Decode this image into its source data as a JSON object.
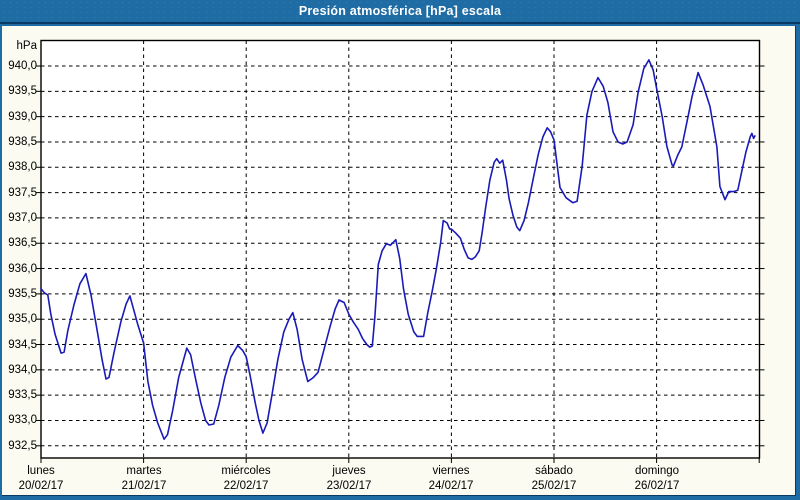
{
  "window": {
    "title": "Presión atmosférica [hPa] escala"
  },
  "colors": {
    "header_bg": "#1f6ba3",
    "header_text": "#ffffff",
    "frame_inner_line": "#0a3a63",
    "background": "#fbfbf1",
    "plot_bg": "#ffffff",
    "plot_border": "#000000",
    "gridline": "#000000",
    "series_line": "#1a1ab8",
    "label_text": "#000000"
  },
  "chart_data": {
    "type": "line",
    "title": "Presión atmosférica [hPa] escala",
    "unit_label": "hPa",
    "ylabel": "hPa",
    "ylim": [
      932.5,
      940.0
    ],
    "ytick_step": 0.5,
    "ytick_labels": [
      "940,0",
      "939,5",
      "939,0",
      "938,5",
      "938,0",
      "937,5",
      "937,0",
      "936,5",
      "936,0",
      "935,5",
      "935,0",
      "934,5",
      "934,0",
      "933,5",
      "933,0",
      "932,5"
    ],
    "x_total_hours": 168,
    "x_days": [
      {
        "name": "lunes",
        "date": "20/02/17"
      },
      {
        "name": "martes",
        "date": "21/02/17"
      },
      {
        "name": "miércoles",
        "date": "22/02/17"
      },
      {
        "name": "jueves",
        "date": "23/02/17"
      },
      {
        "name": "viernes",
        "date": "24/02/17"
      },
      {
        "name": "sábado",
        "date": "25/02/17"
      },
      {
        "name": "domingo",
        "date": "26/02/17"
      }
    ],
    "grid": true,
    "legend": null,
    "series": [
      {
        "name": "presión atmosférica",
        "points": [
          [
            0,
            935.6
          ],
          [
            0.8,
            935.52
          ],
          [
            1.6,
            935.48
          ],
          [
            2.3,
            935.1
          ],
          [
            3.3,
            934.7
          ],
          [
            4.7,
            934.33
          ],
          [
            5.4,
            934.35
          ],
          [
            6.3,
            934.78
          ],
          [
            7.7,
            935.28
          ],
          [
            9.1,
            935.7
          ],
          [
            10.5,
            935.9
          ],
          [
            11.7,
            935.48
          ],
          [
            13.3,
            934.69
          ],
          [
            14.3,
            934.2
          ],
          [
            15.2,
            933.82
          ],
          [
            15.9,
            933.85
          ],
          [
            17.1,
            934.35
          ],
          [
            18.7,
            934.95
          ],
          [
            19.9,
            935.3
          ],
          [
            20.8,
            935.46
          ],
          [
            21.8,
            935.15
          ],
          [
            22.7,
            934.88
          ],
          [
            24,
            934.53
          ],
          [
            25,
            933.77
          ],
          [
            26.1,
            933.3
          ],
          [
            27.3,
            932.95
          ],
          [
            28.8,
            932.63
          ],
          [
            29.6,
            932.72
          ],
          [
            30.8,
            933.2
          ],
          [
            32.2,
            933.85
          ],
          [
            34.1,
            934.43
          ],
          [
            35,
            934.3
          ],
          [
            36.2,
            933.8
          ],
          [
            37.4,
            933.34
          ],
          [
            38.5,
            933.0
          ],
          [
            39.3,
            932.91
          ],
          [
            40.4,
            932.93
          ],
          [
            41.6,
            933.3
          ],
          [
            43,
            933.85
          ],
          [
            44.4,
            934.25
          ],
          [
            46,
            934.48
          ],
          [
            47.2,
            934.38
          ],
          [
            48,
            934.26
          ],
          [
            48.9,
            933.9
          ],
          [
            50.1,
            933.35
          ],
          [
            51,
            933.0
          ],
          [
            51.9,
            932.75
          ],
          [
            52.9,
            932.95
          ],
          [
            54,
            933.5
          ],
          [
            55.4,
            934.2
          ],
          [
            56.8,
            934.75
          ],
          [
            58,
            935.0
          ],
          [
            58.9,
            935.13
          ],
          [
            59.9,
            934.8
          ],
          [
            61.1,
            934.2
          ],
          [
            62.4,
            933.77
          ],
          [
            63.6,
            933.84
          ],
          [
            64.8,
            933.95
          ],
          [
            66.2,
            934.4
          ],
          [
            67.6,
            934.85
          ],
          [
            68.8,
            935.2
          ],
          [
            69.7,
            935.38
          ],
          [
            70.9,
            935.33
          ],
          [
            72,
            935.1
          ],
          [
            73,
            934.95
          ],
          [
            74.2,
            934.8
          ],
          [
            75.2,
            934.62
          ],
          [
            76.2,
            934.5
          ],
          [
            76.9,
            934.45
          ],
          [
            77.5,
            934.47
          ],
          [
            78.1,
            935.05
          ],
          [
            78.9,
            936.08
          ],
          [
            79.8,
            936.35
          ],
          [
            80.8,
            936.49
          ],
          [
            81.7,
            936.46
          ],
          [
            83,
            936.57
          ],
          [
            83.9,
            936.2
          ],
          [
            84.8,
            935.6
          ],
          [
            85.9,
            935.1
          ],
          [
            87.2,
            934.75
          ],
          [
            88,
            934.66
          ],
          [
            89.5,
            934.66
          ],
          [
            90.5,
            935.14
          ],
          [
            91.5,
            935.55
          ],
          [
            92.5,
            936.0
          ],
          [
            93.5,
            936.52
          ],
          [
            94.1,
            936.95
          ],
          [
            95,
            936.9
          ],
          [
            95.6,
            936.78
          ],
          [
            96,
            936.78
          ],
          [
            97,
            936.7
          ],
          [
            98.1,
            936.6
          ],
          [
            99,
            936.38
          ],
          [
            99.9,
            936.21
          ],
          [
            100.8,
            936.18
          ],
          [
            101.6,
            936.23
          ],
          [
            102.5,
            936.35
          ],
          [
            103.2,
            936.72
          ],
          [
            104,
            937.2
          ],
          [
            105,
            937.75
          ],
          [
            106,
            938.1
          ],
          [
            106.6,
            938.17
          ],
          [
            107.3,
            938.08
          ],
          [
            108,
            938.14
          ],
          [
            108.9,
            937.74
          ],
          [
            109.5,
            937.38
          ],
          [
            110.4,
            937.05
          ],
          [
            111.3,
            936.82
          ],
          [
            112,
            936.75
          ],
          [
            113,
            936.95
          ],
          [
            114,
            937.3
          ],
          [
            115.2,
            937.8
          ],
          [
            116.3,
            938.25
          ],
          [
            117.4,
            938.6
          ],
          [
            118.4,
            938.78
          ],
          [
            119.2,
            938.7
          ],
          [
            120,
            938.54
          ],
          [
            121.4,
            937.6
          ],
          [
            122.8,
            937.4
          ],
          [
            124.4,
            937.3
          ],
          [
            125.4,
            937.33
          ],
          [
            126.6,
            938.03
          ],
          [
            127.7,
            939.03
          ],
          [
            128.9,
            939.5
          ],
          [
            130.3,
            939.77
          ],
          [
            131.5,
            939.6
          ],
          [
            132.6,
            939.28
          ],
          [
            133.8,
            938.7
          ],
          [
            135,
            938.5
          ],
          [
            136.1,
            938.46
          ],
          [
            137.1,
            938.5
          ],
          [
            138.5,
            938.84
          ],
          [
            139.7,
            939.49
          ],
          [
            141,
            939.95
          ],
          [
            142.2,
            940.12
          ],
          [
            143.2,
            939.92
          ],
          [
            144,
            939.56
          ],
          [
            145.3,
            939.0
          ],
          [
            146.4,
            938.41
          ],
          [
            147.6,
            938.05
          ],
          [
            147.9,
            938.02
          ],
          [
            149,
            938.25
          ],
          [
            149.9,
            938.4
          ],
          [
            151.1,
            938.9
          ],
          [
            152.3,
            939.4
          ],
          [
            153.7,
            939.87
          ],
          [
            154.9,
            939.62
          ],
          [
            156.5,
            939.2
          ],
          [
            158.1,
            938.4
          ],
          [
            158.8,
            937.62
          ],
          [
            160,
            937.36
          ],
          [
            160.9,
            937.52
          ],
          [
            162.1,
            937.52
          ],
          [
            163,
            937.55
          ],
          [
            164,
            937.95
          ],
          [
            164.9,
            938.3
          ],
          [
            165.9,
            938.6
          ],
          [
            166.3,
            938.67
          ],
          [
            166.7,
            938.57
          ],
          [
            167,
            938.62
          ]
        ]
      }
    ]
  }
}
